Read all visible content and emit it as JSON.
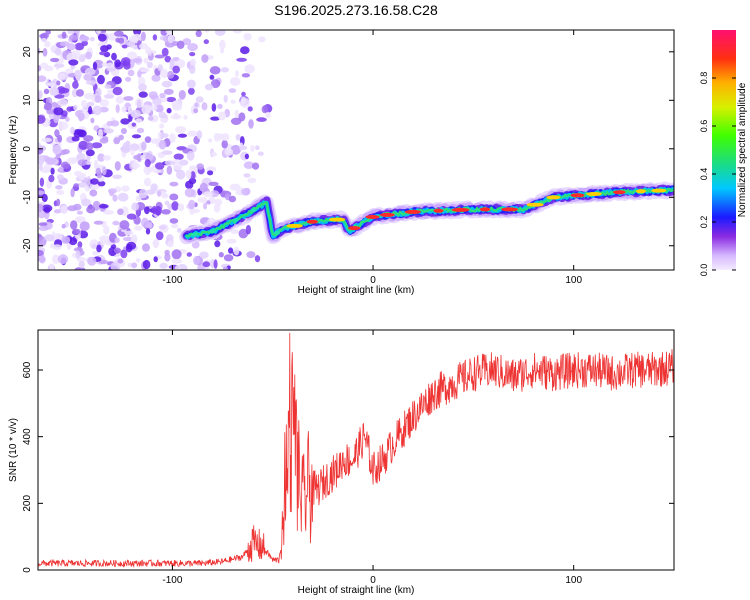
{
  "figure": {
    "title": "S196.2025.273.16.58.C28"
  },
  "chart_data": [
    {
      "type": "heatmap",
      "title": "S196.2025.273.16.58.C28",
      "xlabel": "Height of straight line (km)",
      "ylabel": "Frequency (Hz)",
      "xlim": [
        -167,
        150
      ],
      "ylim": [
        -25,
        24.5
      ],
      "xticks": [
        -100,
        0,
        100
      ],
      "xtick_labels": [
        "-100",
        "0",
        "100"
      ],
      "yticks": [
        -20,
        -10,
        0,
        10,
        20
      ],
      "ytick_labels": [
        "-20",
        "-10",
        "0",
        "10",
        "20"
      ],
      "colorbar": {
        "label": "Normalized spectral amplitude",
        "range": [
          0,
          1
        ],
        "ticks": [
          0.0,
          0.2,
          0.4,
          0.6,
          0.8
        ],
        "tick_labels": [
          "0.0",
          "0.2",
          "0.4",
          "0.6",
          "0.8"
        ]
      },
      "ridge": {
        "description_x": [
          -93,
          -80,
          -65,
          -53,
          -50,
          -45,
          -30,
          -15,
          -12,
          0,
          20,
          50,
          75,
          90,
          120,
          150
        ],
        "frequency_hz": [
          -18,
          -17,
          -14,
          -11,
          -18,
          -16.5,
          -15,
          -14.5,
          -17,
          -14,
          -13,
          -12.5,
          -12.5,
          -10,
          -9,
          -8.5
        ]
      }
    },
    {
      "type": "line",
      "xlabel": "Height of straight line (km)",
      "ylabel": "SNR (10 * v/v)",
      "xlim": [
        -167,
        150
      ],
      "ylim": [
        0,
        720
      ],
      "xticks": [
        -100,
        0,
        100
      ],
      "xtick_labels": [
        "-100",
        "0",
        "100"
      ],
      "yticks": [
        0,
        200,
        400,
        600
      ],
      "ytick_labels": [
        "0",
        "200",
        "400",
        "600"
      ],
      "series": [
        {
          "name": "SNR",
          "color": "#ee3333",
          "x": [
            -167,
            -140,
            -110,
            -85,
            -75,
            -65,
            -60,
            -55,
            -50,
            -47,
            -43,
            -41,
            -38,
            -35,
            -32,
            -28,
            -25,
            -22,
            -18,
            -15,
            -10,
            -6,
            -4,
            -2,
            0,
            5,
            10,
            20,
            30,
            40,
            50,
            60,
            70,
            80,
            90,
            100,
            110,
            120,
            130,
            140,
            150
          ],
          "y": [
            20,
            20,
            20,
            20,
            25,
            40,
            80,
            70,
            30,
            30,
            200,
            550,
            300,
            200,
            250,
            240,
            260,
            280,
            300,
            330,
            330,
            380,
            400,
            350,
            300,
            330,
            380,
            460,
            530,
            560,
            590,
            600,
            580,
            600,
            590,
            600,
            600,
            590,
            600,
            600,
            610
          ]
        }
      ]
    }
  ]
}
